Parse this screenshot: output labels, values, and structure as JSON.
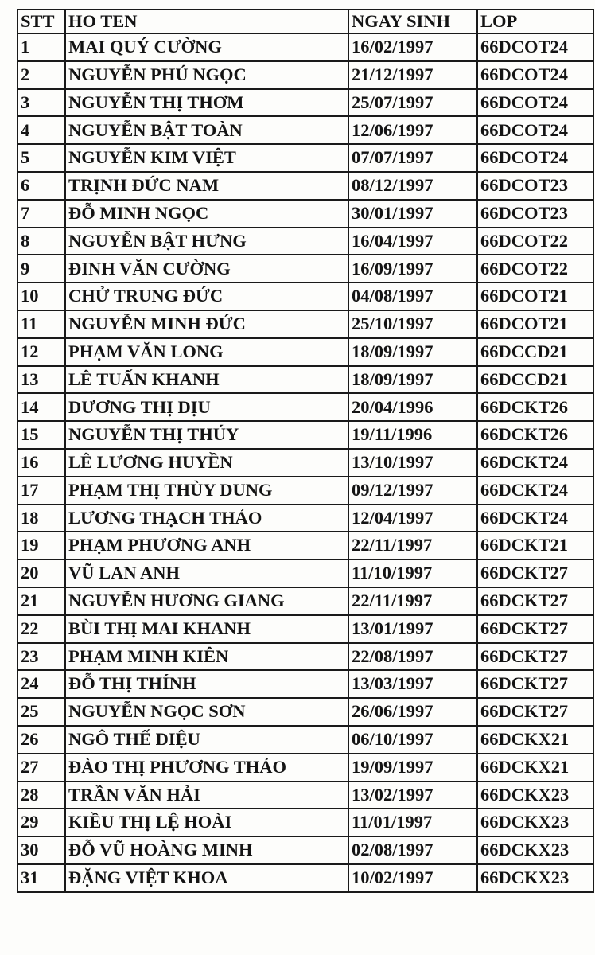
{
  "headers": [
    "STT",
    "HO TEN",
    "NGAY SINH",
    "LOP"
  ],
  "rows": [
    [
      "1",
      "MAI QUÝ CƯỜNG",
      "16/02/1997",
      "66DCOT24"
    ],
    [
      "2",
      "NGUYỄN PHÚ NGỌC",
      "21/12/1997",
      "66DCOT24"
    ],
    [
      "3",
      "NGUYỄN THỊ THƠM",
      "25/07/1997",
      "66DCOT24"
    ],
    [
      "4",
      "NGUYỄN BẬT TOÀN",
      "12/06/1997",
      "66DCOT24"
    ],
    [
      "5",
      "NGUYỄN KIM VIỆT",
      "07/07/1997",
      "66DCOT24"
    ],
    [
      "6",
      "TRỊNH ĐỨC NAM",
      "08/12/1997",
      "66DCOT23"
    ],
    [
      "7",
      "ĐỖ MINH NGỌC",
      "30/01/1997",
      "66DCOT23"
    ],
    [
      "8",
      "NGUYỄN BẬT HƯNG",
      "16/04/1997",
      "66DCOT22"
    ],
    [
      "9",
      "ĐINH VĂN CƯỜNG",
      "16/09/1997",
      "66DCOT22"
    ],
    [
      "10",
      "CHỬ TRUNG ĐỨC",
      "04/08/1997",
      "66DCOT21"
    ],
    [
      "11",
      "NGUYỄN MINH ĐỨC",
      "25/10/1997",
      "66DCOT21"
    ],
    [
      "12",
      "PHẠM VĂN LONG",
      "18/09/1997",
      "66DCCD21"
    ],
    [
      "13",
      "LÊ TUẤN KHANH",
      "18/09/1997",
      "66DCCD21"
    ],
    [
      "14",
      "DƯƠNG THỊ DỊU",
      "20/04/1996",
      "66DCKT26"
    ],
    [
      "15",
      "NGUYỄN THỊ THÚY",
      "19/11/1996",
      "66DCKT26"
    ],
    [
      "16",
      "LÊ LƯƠNG HUYỀN",
      "13/10/1997",
      "66DCKT24"
    ],
    [
      "17",
      "PHẠM THỊ THÙY DUNG",
      "09/12/1997",
      "66DCKT24"
    ],
    [
      "18",
      "LƯƠNG THẠCH THẢO",
      "12/04/1997",
      "66DCKT24"
    ],
    [
      "19",
      "PHẠM PHƯƠNG ANH",
      "22/11/1997",
      "66DCKT21"
    ],
    [
      "20",
      "VŨ LAN ANH",
      "11/10/1997",
      "66DCKT27"
    ],
    [
      "21",
      "NGUYỄN HƯƠNG GIANG",
      "22/11/1997",
      "66DCKT27"
    ],
    [
      "22",
      "BÙI THỊ MAI KHANH",
      "13/01/1997",
      "66DCKT27"
    ],
    [
      "23",
      "PHẠM MINH KIÊN",
      "22/08/1997",
      "66DCKT27"
    ],
    [
      "24",
      "ĐỖ THỊ THÍNH",
      "13/03/1997",
      "66DCKT27"
    ],
    [
      "25",
      "NGUYỄN NGỌC SƠN",
      "26/06/1997",
      "66DCKT27"
    ],
    [
      "26",
      "NGÔ THẾ DIỆU",
      "06/10/1997",
      "66DCKX21"
    ],
    [
      "27",
      "ĐÀO THỊ PHƯƠNG THẢO",
      "19/09/1997",
      "66DCKX21"
    ],
    [
      "28",
      "TRẦN VĂN HẢI",
      "13/02/1997",
      "66DCKX23"
    ],
    [
      "29",
      "KIỀU THỊ LỆ HOÀI",
      "11/01/1997",
      "66DCKX23"
    ],
    [
      "30",
      "ĐỖ VŨ HOÀNG MINH",
      "02/08/1997",
      "66DCKX23"
    ],
    [
      "31",
      "ĐẶNG VIỆT KHOA",
      "10/02/1997",
      "66DCKX23"
    ]
  ]
}
